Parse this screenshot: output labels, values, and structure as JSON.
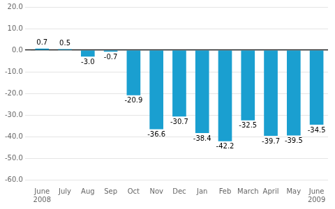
{
  "chart_data": {
    "type": "bar",
    "categories": [
      "June\n2008",
      "July",
      "Aug",
      "Sep",
      "Oct",
      "Nov",
      "Dec",
      "Jan",
      "Feb",
      "March",
      "April",
      "May",
      "June\n2009"
    ],
    "values": [
      0.7,
      0.5,
      -3.0,
      -0.7,
      -20.9,
      -36.6,
      -30.7,
      -38.4,
      -42.2,
      -32.5,
      -39.7,
      -39.5,
      -34.5
    ],
    "value_labels": [
      "0.7",
      "0.5",
      "-3.0",
      "-0.7",
      "-20.9",
      "-36.6",
      "-30.7",
      "-38.4",
      "-42.2",
      "-32.5",
      "-39.7",
      "-39.5",
      "-34.5"
    ],
    "color": "#1a9fd0",
    "ylim": [
      -60.0,
      20.0
    ],
    "yticks": [
      {
        "value": -60,
        "label": "-60.0"
      },
      {
        "value": -50,
        "label": "-50.0"
      },
      {
        "value": -40,
        "label": "-40.0"
      },
      {
        "value": -30,
        "label": "-30.0"
      },
      {
        "value": -20,
        "label": "-20.0"
      },
      {
        "value": -10,
        "label": "-10.0"
      },
      {
        "value": 0,
        "label": "0.0"
      },
      {
        "value": 10,
        "label": "10.0"
      },
      {
        "value": 20,
        "label": "20.0"
      }
    ],
    "grid": true,
    "data_labels": true
  }
}
